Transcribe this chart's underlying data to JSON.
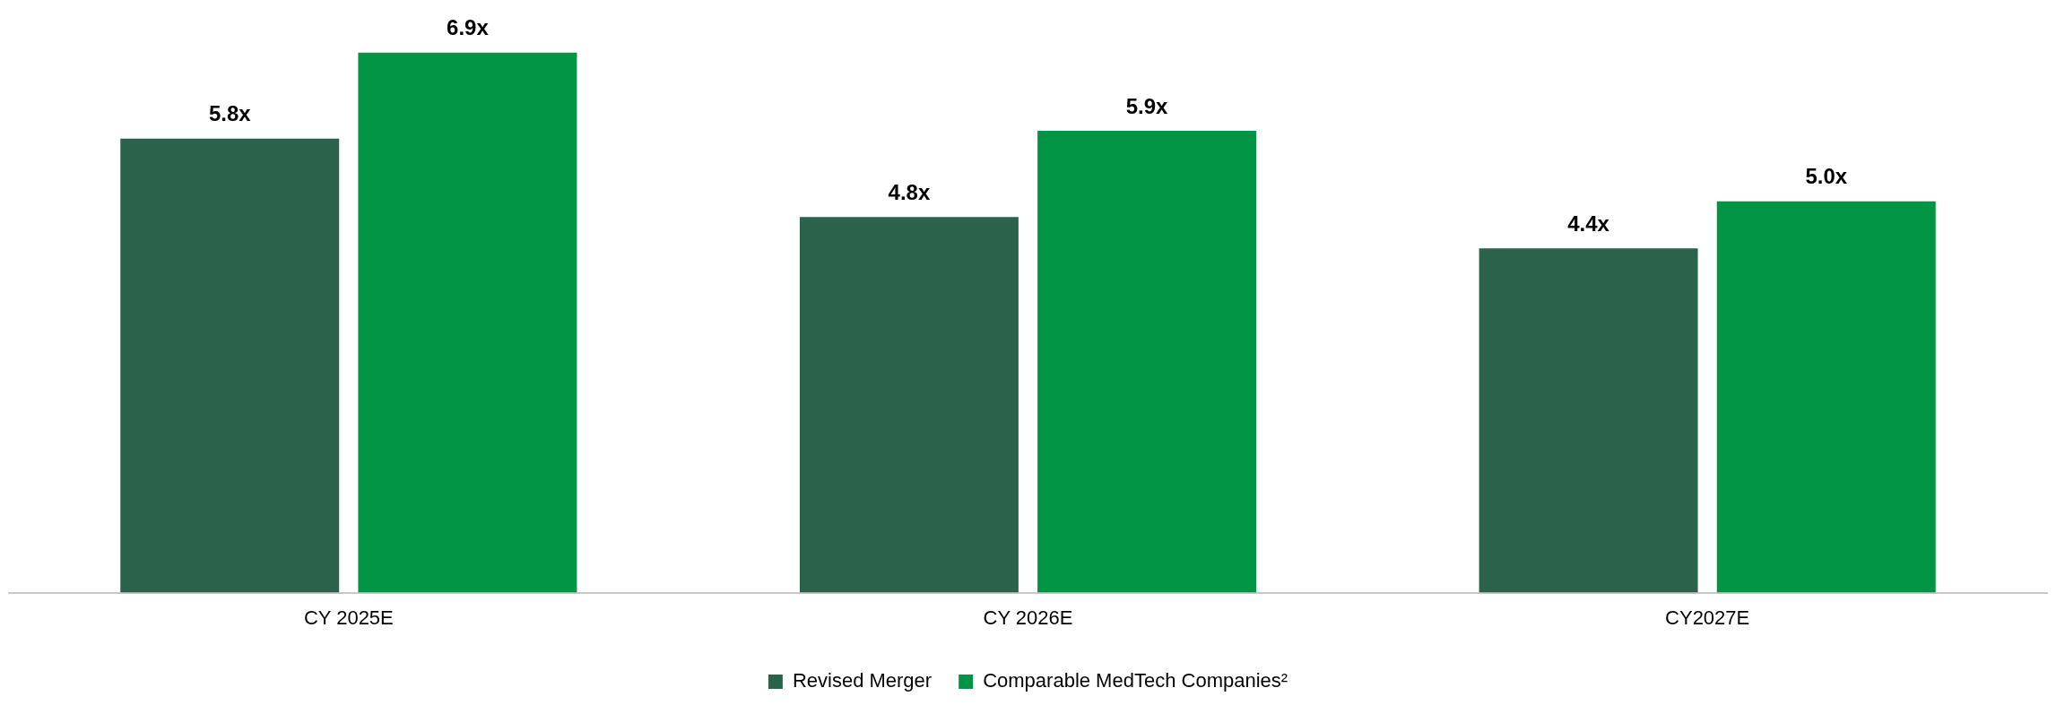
{
  "chart_data": {
    "type": "bar",
    "categories": [
      "CY 2025E",
      "CY 2026E",
      "CY2027E"
    ],
    "series": [
      {
        "name": "Revised Merger",
        "color": "#2a624c",
        "values": [
          5.8,
          4.8,
          4.4
        ],
        "value_labels": [
          "5.8x",
          "4.8x",
          "4.4x"
        ]
      },
      {
        "name": "Comparable MedTech Companies²",
        "color": "#009444",
        "values": [
          6.9,
          5.9,
          5.0
        ],
        "value_labels": [
          "6.9x",
          "5.9x",
          "5.0x"
        ]
      }
    ],
    "grid": false,
    "legend": "bottom"
  }
}
